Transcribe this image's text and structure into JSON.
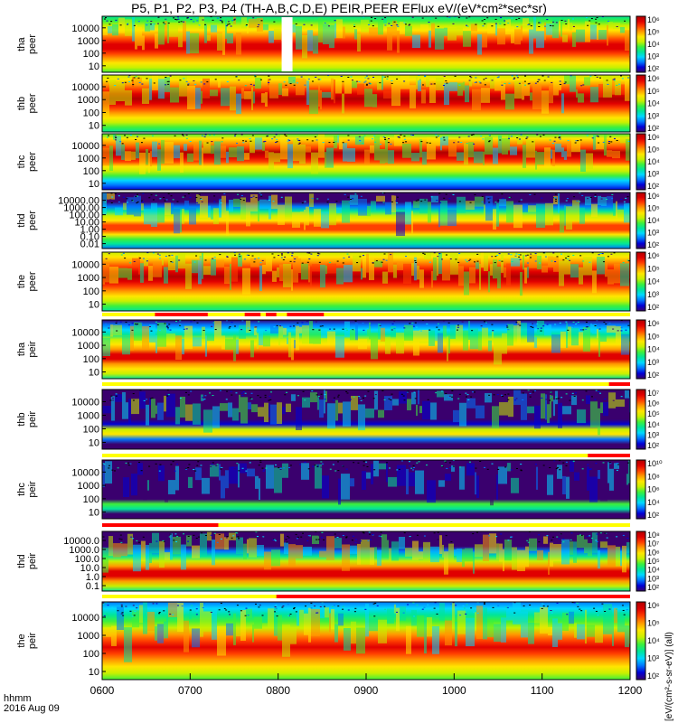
{
  "title": "P5, P1, P2, P3, P4 (TH-A,B,C,D,E) PEIR,PEER EFlux eV/(eV*cm²*sec*sr)",
  "time_axis": {
    "label_line1": "hhmm",
    "label_line2": "2016 Aug 09",
    "ticks": [
      "0600",
      "0700",
      "0800",
      "0900",
      "1000",
      "1100",
      "1200"
    ]
  },
  "colorbar_unit": "[eV/(cm²-s-sr-eV)] (all)",
  "colors": {
    "spectrum": [
      "#3a006e",
      "#0000d6",
      "#0077ff",
      "#00d8ff",
      "#00e59a",
      "#3cf03c",
      "#c8f000",
      "#ffe600",
      "#ff9a00",
      "#ff4000",
      "#e00000",
      "#b00000"
    ],
    "flag_red": "#ff0000",
    "flag_yellow": "#ffff00",
    "black": "#000000",
    "grid": "#000000"
  },
  "chart_data": {
    "type": "heatmap",
    "x_range": [
      "0600",
      "1200"
    ],
    "panels": [
      {
        "id": "tha_peer",
        "ylabel": [
          "tha",
          "peer"
        ],
        "yticks": [
          "10",
          "100",
          "1000",
          "10000"
        ],
        "cbar": [
          "10²",
          "10³",
          "10⁴",
          "10⁵",
          "10⁶"
        ],
        "peak": 0.55,
        "high": 0.95,
        "band": 0.55
      },
      {
        "id": "thb_peer",
        "ylabel": [
          "thb",
          "peer"
        ],
        "yticks": [
          "10",
          "100",
          "1000",
          "10000"
        ],
        "cbar": [
          "10²",
          "10³",
          "10⁴",
          "10⁵",
          "10⁶"
        ],
        "peak": 0.42,
        "high": 0.98,
        "band": 0.6
      },
      {
        "id": "thc_peer",
        "ylabel": [
          "thc",
          "peer"
        ],
        "yticks": [
          "10",
          "100",
          "1000",
          "10000"
        ],
        "cbar": [
          "10²",
          "10³",
          "10⁴",
          "10⁵",
          "10⁶"
        ],
        "peak": 0.35,
        "high": 0.95,
        "band": 0.45
      },
      {
        "id": "thd_peer",
        "ylabel": [
          "thd",
          "peer"
        ],
        "yticks": [
          "0.01",
          "0.10",
          "1.00",
          "10.00",
          "100.00",
          "1000.00",
          "10000.00"
        ],
        "cbar": [
          "10²",
          "10³",
          "10⁴",
          "10⁵",
          "10⁶"
        ],
        "peak": 0.62,
        "high": 0.85,
        "band": 0.35
      },
      {
        "id": "the_peer",
        "ylabel": [
          "the",
          "peer"
        ],
        "yticks": [
          "10",
          "100",
          "1000",
          "10000"
        ],
        "cbar": [
          "10²",
          "10³",
          "10⁴",
          "10⁵",
          "10⁶"
        ],
        "peak": 0.42,
        "high": 1.0,
        "band": 0.55
      },
      {
        "id": "tha_peir",
        "ylabel": [
          "tha",
          "peir"
        ],
        "yticks": [
          "10",
          "100",
          "1000",
          "10000"
        ],
        "cbar": [
          "10²",
          "10³",
          "10⁴",
          "10⁵",
          "10⁶"
        ],
        "peak": 0.62,
        "high": 0.9,
        "band": 0.45
      },
      {
        "id": "thb_peir",
        "ylabel": [
          "thb",
          "peir"
        ],
        "yticks": [
          "10",
          "100",
          "1000",
          "10000"
        ],
        "cbar": [
          "10²",
          "10³",
          "10⁴",
          "10⁵",
          "10⁶",
          "10⁷"
        ],
        "peak": 0.72,
        "high": 0.78,
        "band": 0.12
      },
      {
        "id": "thc_peir",
        "ylabel": [
          "thc",
          "peir"
        ],
        "yticks": [
          "10",
          "100",
          "1000",
          "10000"
        ],
        "cbar": [
          "10²",
          "10⁴",
          "10⁶",
          "10⁸",
          "10¹⁰"
        ],
        "peak": 0.78,
        "high": 0.62,
        "band": 0.12
      },
      {
        "id": "thd_peir",
        "ylabel": [
          "thd",
          "peir"
        ],
        "yticks": [
          "0.1",
          "1.0",
          "10.0",
          "100.0",
          "1000.0",
          "10000.0"
        ],
        "cbar": [
          "10²",
          "10³",
          "10⁴",
          "10⁵",
          "10⁶",
          "10⁷",
          "10⁸"
        ],
        "peak": 0.72,
        "high": 0.95,
        "band": 0.3
      },
      {
        "id": "the_peir",
        "ylabel": [
          "the",
          "peir"
        ],
        "yticks": [
          "10",
          "100",
          "1000",
          "10000"
        ],
        "cbar": [
          "10²",
          "10³",
          "10⁴",
          "10⁵",
          "10⁶"
        ],
        "peak": 0.6,
        "high": 0.9,
        "band": 0.5
      }
    ]
  }
}
